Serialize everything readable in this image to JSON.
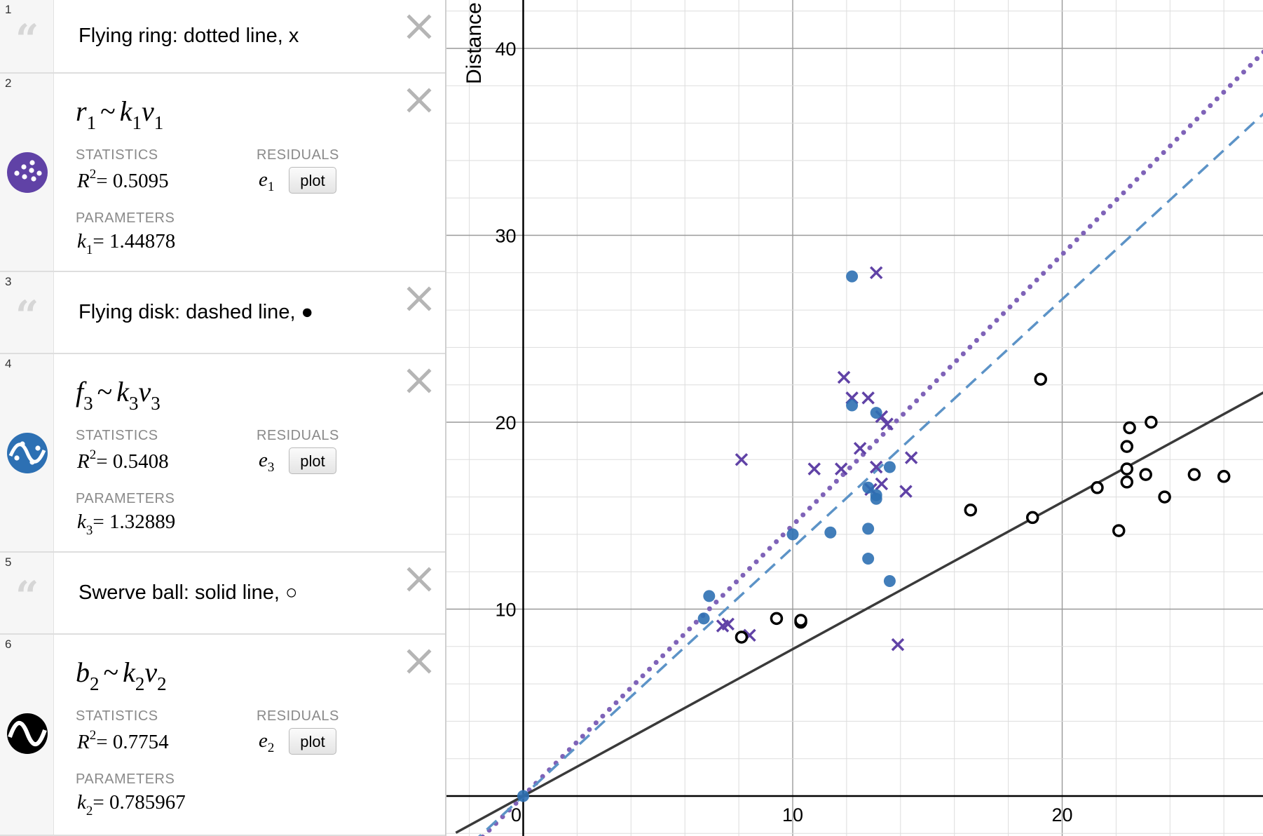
{
  "expressions": [
    {
      "index": "1",
      "type": "note",
      "text": "Flying ring: dotted line, x"
    },
    {
      "index": "2",
      "type": "regression",
      "lhs": "r",
      "lhs_sub": "1",
      "op": "~",
      "k": "k",
      "k_sub": "1",
      "v": "v",
      "v_sub": "1",
      "statistics_label": "STATISTICS",
      "r2_text": "R",
      "r2_sup": "2",
      "r2_value": "= 0.5095",
      "residuals_label": "RESIDUALS",
      "residual_var": "e",
      "residual_sub": "1",
      "plot_label": "plot",
      "parameters_label": "PARAMETERS",
      "param_var": "k",
      "param_sub": "1",
      "param_value": "= 1.44878",
      "icon_color": "#6042a6",
      "icon_name": "scatter-dots-icon"
    },
    {
      "index": "3",
      "type": "note",
      "text": "Flying disk: dashed line, ●"
    },
    {
      "index": "4",
      "type": "regression",
      "lhs": "f",
      "lhs_sub": "3",
      "op": "~",
      "k": "k",
      "k_sub": "3",
      "v": "v",
      "v_sub": "3",
      "statistics_label": "STATISTICS",
      "r2_text": "R",
      "r2_sup": "2",
      "r2_value": "= 0.5408",
      "residuals_label": "RESIDUALS",
      "residual_var": "e",
      "residual_sub": "3",
      "plot_label": "plot",
      "parameters_label": "PARAMETERS",
      "param_var": "k",
      "param_sub": "3",
      "param_value": "= 1.32889",
      "icon_color": "#2d70b3",
      "icon_name": "wave-dots-icon"
    },
    {
      "index": "5",
      "type": "note",
      "text": "Swerve ball: solid line, ○"
    },
    {
      "index": "6",
      "type": "regression",
      "lhs": "b",
      "lhs_sub": "2",
      "op": "~",
      "k": "k",
      "k_sub": "2",
      "v": "v",
      "v_sub": "2",
      "statistics_label": "STATISTICS",
      "r2_text": "R",
      "r2_sup": "2",
      "r2_value": "= 0.7754",
      "residuals_label": "RESIDUALS",
      "residual_var": "e",
      "residual_sub": "2",
      "plot_label": "plot",
      "parameters_label": "PARAMETERS",
      "param_var": "k",
      "param_sub": "2",
      "param_value": "= 0.785967",
      "icon_color": "#000000",
      "icon_name": "wave-line-icon"
    }
  ],
  "chart_data": {
    "type": "scatter",
    "ylabel": "Distance",
    "xlabel": "",
    "xlim": [
      -2.5,
      27.5
    ],
    "ylim": [
      -2,
      43
    ],
    "x_ticks": [
      "0",
      "10",
      "20"
    ],
    "y_ticks": [
      "10",
      "20",
      "30",
      "40"
    ],
    "grid": true,
    "series": [
      {
        "name": "Flying ring",
        "marker": "x",
        "color": "#6042a6",
        "fit_slope": 1.44878,
        "fit_style": "dotted",
        "points": [
          [
            7.4,
            9.1
          ],
          [
            7.6,
            9.2
          ],
          [
            8.1,
            18.0
          ],
          [
            8.4,
            8.6
          ],
          [
            10.8,
            17.5
          ],
          [
            11.8,
            17.5
          ],
          [
            11.9,
            22.4
          ],
          [
            12.2,
            21.3
          ],
          [
            12.5,
            18.6
          ],
          [
            12.8,
            21.3
          ],
          [
            12.9,
            16.4
          ],
          [
            13.1,
            17.6
          ],
          [
            13.1,
            28.0
          ],
          [
            13.3,
            16.7
          ],
          [
            13.3,
            20.3
          ],
          [
            13.5,
            19.9
          ],
          [
            13.9,
            8.1
          ],
          [
            14.2,
            16.3
          ],
          [
            14.4,
            18.1
          ]
        ]
      },
      {
        "name": "Flying disk",
        "marker": "filled-circle",
        "color": "#2d70b3",
        "fit_slope": 1.32889,
        "fit_style": "dashed",
        "points": [
          [
            0,
            0
          ],
          [
            6.7,
            9.5
          ],
          [
            6.9,
            10.7
          ],
          [
            10.0,
            14.0
          ],
          [
            11.4,
            14.1
          ],
          [
            12.2,
            20.9
          ],
          [
            12.2,
            27.8
          ],
          [
            12.8,
            12.7
          ],
          [
            12.8,
            14.3
          ],
          [
            12.8,
            16.5
          ],
          [
            13.1,
            15.9
          ],
          [
            13.1,
            16.1
          ],
          [
            13.1,
            20.5
          ],
          [
            13.6,
            11.5
          ],
          [
            13.6,
            17.6
          ]
        ]
      },
      {
        "name": "Swerve ball",
        "marker": "open-circle",
        "color": "#000000",
        "fit_slope": 0.785967,
        "fit_style": "solid",
        "points": [
          [
            8.1,
            8.5
          ],
          [
            9.4,
            9.5
          ],
          [
            10.3,
            9.3
          ],
          [
            10.3,
            9.4
          ],
          [
            16.6,
            15.3
          ],
          [
            18.9,
            14.9
          ],
          [
            19.2,
            22.3
          ],
          [
            21.3,
            16.5
          ],
          [
            22.1,
            14.2
          ],
          [
            22.4,
            16.8
          ],
          [
            22.4,
            17.5
          ],
          [
            22.4,
            18.7
          ],
          [
            22.5,
            19.7
          ],
          [
            23.1,
            17.2
          ],
          [
            23.3,
            20.0
          ],
          [
            23.8,
            16.0
          ],
          [
            24.9,
            17.2
          ],
          [
            26.0,
            17.1
          ]
        ]
      }
    ]
  }
}
